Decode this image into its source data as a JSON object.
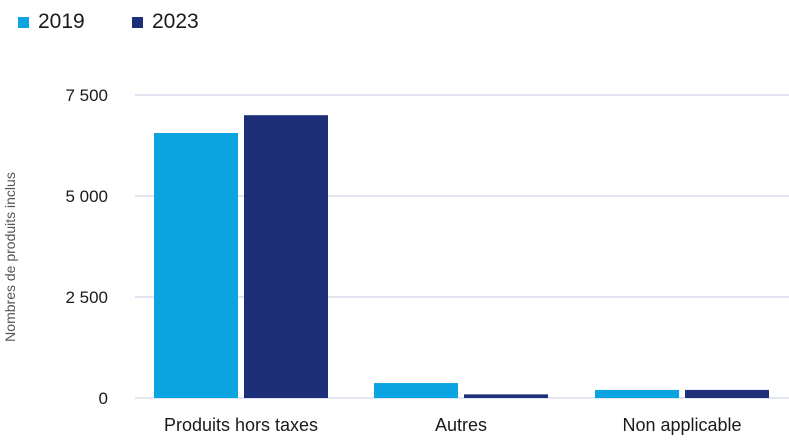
{
  "chart_data": {
    "type": "bar",
    "categories": [
      "Produits hors taxes",
      "Autres",
      "Non applicable"
    ],
    "series": [
      {
        "name": "2019",
        "color": "#0ca4e0",
        "values": [
          6560,
          370,
          200
        ]
      },
      {
        "name": "2023",
        "color": "#1d2f78",
        "values": [
          7000,
          90,
          200
        ]
      }
    ],
    "ylabel": "Nombres de produits inclus",
    "ylim": [
      0,
      7500
    ],
    "yticks": [
      0,
      2500,
      5000,
      7500
    ],
    "ytick_labels": [
      "0",
      "2 500",
      "5 000",
      "7 500"
    ],
    "grid": true,
    "legend": "top-left",
    "gridline_color": "#d9deeb"
  }
}
